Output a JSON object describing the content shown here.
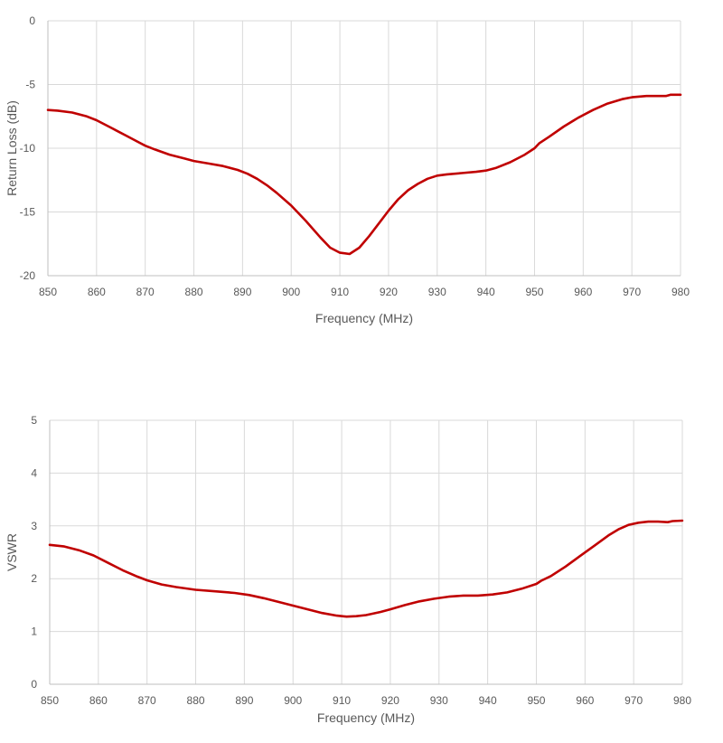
{
  "chart_data": [
    {
      "type": "line",
      "xlabel": "Frequency (MHz)",
      "ylabel": "Return Loss (dB)",
      "xlim": [
        850,
        980
      ],
      "ylim": [
        -20,
        0
      ],
      "xticks": [
        850,
        860,
        870,
        880,
        890,
        900,
        910,
        920,
        930,
        940,
        950,
        960,
        970,
        980
      ],
      "yticks": [
        0,
        -5,
        -10,
        -15,
        -20
      ],
      "grid": true,
      "legend": "none",
      "color": "#C00000",
      "series": [
        {
          "x": [
            850,
            852,
            855,
            858,
            860,
            863,
            866,
            869,
            870,
            872,
            875,
            878,
            880,
            883,
            886,
            889,
            891,
            893,
            895,
            897,
            900,
            903,
            906,
            908,
            910,
            912,
            914,
            916,
            918,
            920,
            922,
            924,
            926,
            928,
            930,
            932,
            935,
            938,
            940,
            942,
            945,
            948,
            950,
            951,
            953,
            956,
            959,
            962,
            965,
            968,
            970,
            973,
            975,
            977,
            978,
            980
          ],
          "y": [
            -7.0,
            -7.05,
            -7.2,
            -7.5,
            -7.8,
            -8.4,
            -9.0,
            -9.6,
            -9.8,
            -10.1,
            -10.5,
            -10.8,
            -11.0,
            -11.2,
            -11.4,
            -11.7,
            -12.0,
            -12.4,
            -12.9,
            -13.5,
            -14.5,
            -15.7,
            -17.0,
            -17.8,
            -18.2,
            -18.3,
            -17.8,
            -16.9,
            -15.9,
            -14.9,
            -14.0,
            -13.3,
            -12.8,
            -12.4,
            -12.15,
            -12.05,
            -11.95,
            -11.85,
            -11.75,
            -11.55,
            -11.1,
            -10.5,
            -10.0,
            -9.6,
            -9.1,
            -8.3,
            -7.6,
            -7.0,
            -6.5,
            -6.15,
            -6.0,
            -5.9,
            -5.9,
            -5.9,
            -5.8,
            -5.8
          ]
        }
      ]
    },
    {
      "type": "line",
      "xlabel": "Frequency (MHz)",
      "ylabel": "VSWR",
      "xlim": [
        850,
        980
      ],
      "ylim": [
        0,
        5
      ],
      "xticks": [
        850,
        860,
        870,
        880,
        890,
        900,
        910,
        920,
        930,
        940,
        950,
        960,
        970,
        980
      ],
      "yticks": [
        0,
        1,
        2,
        3,
        4,
        5
      ],
      "grid": true,
      "legend": "none",
      "color": "#C00000",
      "series": [
        {
          "x": [
            850,
            853,
            856,
            859,
            862,
            865,
            868,
            870,
            873,
            876,
            880,
            884,
            888,
            891,
            894,
            897,
            900,
            903,
            906,
            909,
            911,
            913,
            915,
            918,
            920,
            923,
            926,
            929,
            932,
            935,
            938,
            941,
            944,
            947,
            950,
            951,
            953,
            956,
            959,
            962,
            965,
            967,
            969,
            971,
            973,
            975,
            977,
            978,
            980
          ],
          "y": [
            2.64,
            2.61,
            2.54,
            2.44,
            2.3,
            2.16,
            2.04,
            1.97,
            1.89,
            1.84,
            1.79,
            1.76,
            1.73,
            1.69,
            1.63,
            1.56,
            1.49,
            1.42,
            1.35,
            1.3,
            1.28,
            1.29,
            1.31,
            1.37,
            1.42,
            1.5,
            1.57,
            1.62,
            1.66,
            1.68,
            1.68,
            1.7,
            1.74,
            1.81,
            1.9,
            1.96,
            2.05,
            2.23,
            2.43,
            2.63,
            2.83,
            2.94,
            3.02,
            3.06,
            3.08,
            3.08,
            3.07,
            3.09,
            3.1
          ]
        }
      ]
    }
  ]
}
